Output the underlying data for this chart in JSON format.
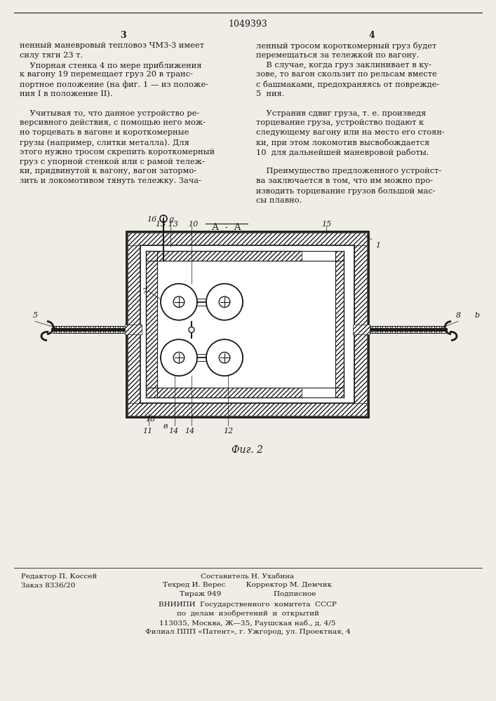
{
  "page_number_center": "1049393",
  "page_col_left": "3",
  "page_col_right": "4",
  "bg_color": "#f0ede6",
  "text_color": "#1a1a1a",
  "col_left_text": [
    "ненный маневровый тепловоз ЧМЗ-3 имеет",
    "силу тяги 23 т.",
    "    Упорная стенка 4 по мере приближения",
    "к вагону 19 перемещает груз 20 в транс-",
    "портное положение (на фиг. 1 — из положе-",
    "ния I в положение II).",
    "",
    "    Учитывая то, что данное устройство ре-",
    "версивного действия, с помощью него мож-",
    "но торцевать в вагоне и короткомерные",
    "грузы (например, слитки металла). Для",
    "этого нужно тросом скрепить короткомерный",
    "груз с упорной стенкой или с рамой тележ-",
    "ки, придвинутой к вагону, вагон затормо-",
    "зить и локомотивом тянуть тележку. Зача-"
  ],
  "col_right_text": [
    "ленный тросом короткомерный груз будет",
    "перемещаться за тележкой по вагону.",
    "    В случае, когда груз заклинивает в ку-",
    "зове, то вагон скользит по рельсам вместе",
    "с башмаками, предохраняясь от поврежде-",
    "5  ния.",
    "",
    "    Устранив сдвиг груза, т. е. произведя",
    "торцевание груза, устройство подают к",
    "следующему вагону или на место его стоян-",
    "ки, при этом локомотив высвобождается",
    "10  для дальнейшей маневровой работы.",
    "",
    "    Преимущество предложенного устройст-",
    "ва заключается в том, что им можно про-",
    "изводить торцевание грузов большой мас-",
    "сы плавно."
  ],
  "footer_left_col1": [
    "Редактор П. Коссей",
    "Заказ 8336/20"
  ],
  "footer_center_col": [
    "Составитель Н. Ухабина",
    "Техред И. Верес         Корректор М. Демчик",
    "Тираж 949                       Подписное"
  ],
  "footer_bottom": [
    "ВНИИПИ  Государственного  комитета  СССР",
    "по  делам  изобретений  и  открытий",
    "113035, Москва, Ж—35, Раушская наб., д. 4/5",
    "Филиал ППП «Патент», г. Ужгород, ул. Проектная, 4"
  ],
  "fig_caption": "Фиг. 2"
}
